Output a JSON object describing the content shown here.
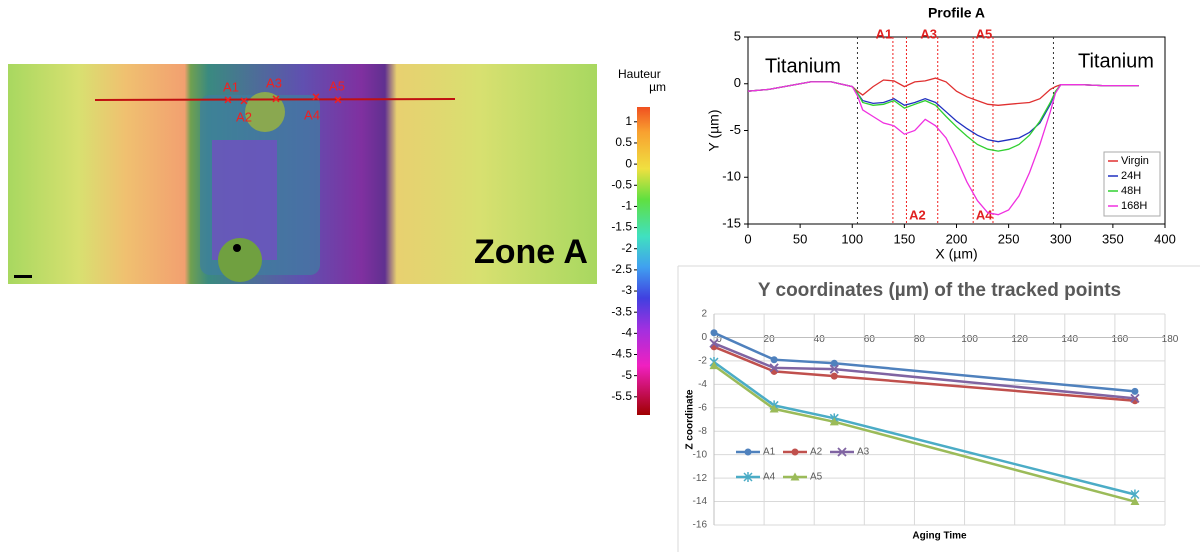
{
  "heightmap": {
    "points": [
      "A1",
      "A2",
      "A3",
      "A4",
      "A5"
    ],
    "zone": "Zone A"
  },
  "colorbar": {
    "title": "Hauteur",
    "unit": "µm",
    "lim": [
      1.35,
      -5.93
    ],
    "ticks": [
      1,
      0.5,
      0,
      -0.5,
      -1,
      -1.5,
      -2,
      -2.5,
      -3,
      -3.5,
      -4,
      -4.5,
      -5,
      -5.5
    ]
  },
  "chart_data": [
    {
      "type": "line",
      "title": "Profile A",
      "x_label": "X (µm)",
      "y_label": "Y (µm)",
      "x": [
        0,
        20,
        40,
        60,
        80,
        100,
        105,
        110,
        120,
        130,
        140,
        150,
        160,
        170,
        180,
        190,
        200,
        210,
        220,
        230,
        240,
        250,
        260,
        270,
        280,
        290,
        295,
        300,
        320,
        340,
        360,
        375
      ],
      "xlim": [
        0,
        400
      ],
      "xticks": [
        0,
        50,
        100,
        150,
        200,
        250,
        300,
        350,
        400
      ],
      "ylim": [
        -15,
        5
      ],
      "yticks": [
        -15,
        -10,
        -5,
        0,
        5
      ],
      "grid": false,
      "legend": "lower right",
      "series": [
        {
          "name": "Virgin",
          "color": "#e03030",
          "values": [
            -0.8,
            -0.6,
            -0.2,
            0.2,
            0.2,
            -0.3,
            -0.8,
            -1.2,
            -0.3,
            0.4,
            0.3,
            -0.3,
            0.2,
            0.3,
            0.6,
            0.2,
            -0.8,
            -1.4,
            -1.8,
            -2.2,
            -2.3,
            -2.2,
            -2.1,
            -2.0,
            -1.6,
            -0.6,
            -0.3,
            -0.1,
            -0.1,
            -0.2,
            -0.2,
            -0.2
          ]
        },
        {
          "name": "24H",
          "color": "#2030c0",
          "values": [
            -0.8,
            -0.6,
            -0.2,
            0.2,
            0.2,
            -0.3,
            -1.0,
            -1.8,
            -2.1,
            -2.0,
            -1.6,
            -2.3,
            -2.0,
            -1.6,
            -2.0,
            -3.0,
            -4.0,
            -4.8,
            -5.5,
            -6.0,
            -6.2,
            -6.0,
            -5.8,
            -5.2,
            -4.2,
            -2.2,
            -0.9,
            -0.1,
            -0.1,
            -0.2,
            -0.2,
            -0.2
          ]
        },
        {
          "name": "48H",
          "color": "#30d030",
          "values": [
            -0.8,
            -0.6,
            -0.2,
            0.2,
            0.2,
            -0.3,
            -1.0,
            -2.0,
            -2.3,
            -2.2,
            -1.8,
            -2.6,
            -2.2,
            -1.8,
            -2.3,
            -3.5,
            -4.6,
            -5.6,
            -6.5,
            -7.0,
            -7.2,
            -7.0,
            -6.5,
            -5.5,
            -4.0,
            -2.0,
            -0.8,
            -0.1,
            -0.1,
            -0.2,
            -0.2,
            -0.2
          ]
        },
        {
          "name": "168H",
          "color": "#f030e0",
          "values": [
            -0.8,
            -0.6,
            -0.2,
            0.2,
            0.2,
            -0.3,
            -1.3,
            -2.8,
            -3.5,
            -4.2,
            -4.5,
            -5.4,
            -5.0,
            -3.8,
            -4.5,
            -5.8,
            -8.0,
            -10.5,
            -12.5,
            -13.8,
            -14.0,
            -13.5,
            -12.0,
            -9.5,
            -6.5,
            -3.0,
            -1.0,
            -0.1,
            -0.1,
            -0.2,
            -0.2,
            -0.2
          ]
        }
      ],
      "annotations": [
        "Titanium",
        "Titanium"
      ],
      "boundaries": [
        105,
        293
      ],
      "markers": [
        {
          "label": "A1",
          "x": 139
        },
        {
          "label": "A2",
          "x": 152
        },
        {
          "label": "A3",
          "x": 182
        },
        {
          "label": "A4",
          "x": 216
        },
        {
          "label": "A5",
          "x": 235
        }
      ]
    },
    {
      "type": "line",
      "title": "Y coordinates (µm) of the tracked points",
      "x_label": "Aging Time",
      "y_label": "Z coordinate",
      "x": [
        0,
        24,
        48,
        168
      ],
      "xlim": [
        0,
        180
      ],
      "xticks": [
        0,
        20,
        40,
        60,
        80,
        100,
        120,
        140,
        160,
        180
      ],
      "ylim": [
        -16,
        2
      ],
      "yticks": [
        -16,
        -14,
        -12,
        -10,
        -8,
        -6,
        -4,
        -2,
        0,
        2
      ],
      "grid": true,
      "legend": "lower left",
      "series": [
        {
          "name": "A1",
          "color": "#4f81bd",
          "marker": "circle",
          "values": [
            0.4,
            -1.9,
            -2.2,
            -4.6
          ]
        },
        {
          "name": "A2",
          "color": "#c0504d",
          "marker": "circle",
          "values": [
            -0.8,
            -2.9,
            -3.3,
            -5.4
          ]
        },
        {
          "name": "A3",
          "color": "#8064a2",
          "marker": "x",
          "values": [
            -0.5,
            -2.6,
            -2.7,
            -5.2
          ]
        },
        {
          "name": "A4",
          "color": "#4bacc6",
          "marker": "asterisk",
          "values": [
            -2.1,
            -5.8,
            -6.9,
            -13.4
          ]
        },
        {
          "name": "A5",
          "color": "#9bbb59",
          "marker": "triangle",
          "values": [
            -2.4,
            -6.1,
            -7.2,
            -14.0
          ]
        }
      ]
    }
  ]
}
